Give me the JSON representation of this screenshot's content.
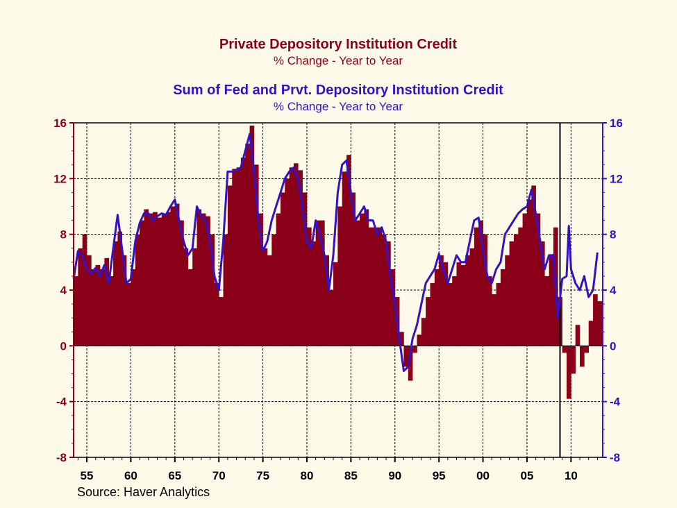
{
  "colors": {
    "series1": "#8b0019",
    "series2": "#3411c4",
    "background": "#fdf9e8"
  },
  "chart_data": {
    "type": "bar+line",
    "titles": [
      {
        "title": "Private Depository Institution Credit",
        "subtitle": "% Change - Year to Year",
        "color": "#8b0019"
      },
      {
        "title": "Sum of Fed and Prvt. Depository Institution Credit",
        "subtitle": "% Change - Year to Year",
        "color": "#3411c4"
      }
    ],
    "source": "Source: Haver Analytics",
    "ylim": [
      -8,
      16
    ],
    "yticks": [
      16,
      12,
      8,
      4,
      0,
      -4,
      -8
    ],
    "ytick_labels": [
      "16",
      "12",
      "8",
      "4",
      "0",
      "-4",
      "-8"
    ],
    "xlim": [
      1953.5,
      2013.6
    ],
    "xticks": [
      1955,
      1960,
      1965,
      1970,
      1975,
      1980,
      1985,
      1990,
      1995,
      2000,
      2005,
      2010
    ],
    "xtick_labels": [
      "55",
      "60",
      "65",
      "70",
      "75",
      "80",
      "85",
      "90",
      "95",
      "00",
      "05",
      "10"
    ],
    "grid": true,
    "vline_x": 2008.75,
    "series": [
      {
        "name": "Private Depository Institution Credit",
        "kind": "bar",
        "axis": "left",
        "color": "#8b0019",
        "points": [
          [
            1953.5,
            5.0
          ],
          [
            1954.0,
            7.0
          ],
          [
            1954.5,
            8.0
          ],
          [
            1955.0,
            6.5
          ],
          [
            1955.5,
            5.5
          ],
          [
            1956.0,
            5.8
          ],
          [
            1956.5,
            5.5
          ],
          [
            1957.0,
            6.3
          ],
          [
            1957.5,
            5.0
          ],
          [
            1958.0,
            7.5
          ],
          [
            1958.5,
            8.2
          ],
          [
            1959.0,
            6.5
          ],
          [
            1959.5,
            4.5
          ],
          [
            1960.0,
            5.5
          ],
          [
            1960.5,
            8.0
          ],
          [
            1961.0,
            9.0
          ],
          [
            1961.5,
            9.8
          ],
          [
            1962.0,
            9.5
          ],
          [
            1962.5,
            9.6
          ],
          [
            1963.0,
            9.2
          ],
          [
            1963.5,
            9.4
          ],
          [
            1964.0,
            9.6
          ],
          [
            1964.5,
            10.0
          ],
          [
            1965.0,
            10.2
          ],
          [
            1965.5,
            9.0
          ],
          [
            1966.0,
            7.0
          ],
          [
            1966.5,
            5.5
          ],
          [
            1967.0,
            7.0
          ],
          [
            1967.5,
            9.8
          ],
          [
            1968.0,
            9.5
          ],
          [
            1968.5,
            9.3
          ],
          [
            1969.0,
            8.0
          ],
          [
            1969.5,
            4.5
          ],
          [
            1970.0,
            3.5
          ],
          [
            1970.5,
            8.0
          ],
          [
            1971.0,
            11.5
          ],
          [
            1971.5,
            12.7
          ],
          [
            1972.0,
            12.8
          ],
          [
            1972.5,
            13.5
          ],
          [
            1973.0,
            14.5
          ],
          [
            1973.5,
            15.8
          ],
          [
            1974.0,
            13.0
          ],
          [
            1974.5,
            9.5
          ],
          [
            1975.0,
            7.0
          ],
          [
            1975.5,
            6.5
          ],
          [
            1976.0,
            8.0
          ],
          [
            1976.5,
            9.5
          ],
          [
            1977.0,
            11.0
          ],
          [
            1977.5,
            12.0
          ],
          [
            1978.0,
            12.8
          ],
          [
            1978.5,
            13.1
          ],
          [
            1979.0,
            12.6
          ],
          [
            1979.5,
            11.0
          ],
          [
            1980.0,
            8.5
          ],
          [
            1980.5,
            7.5
          ],
          [
            1981.0,
            9.0
          ],
          [
            1981.5,
            9.0
          ],
          [
            1982.0,
            6.5
          ],
          [
            1982.5,
            4.0
          ],
          [
            1983.0,
            6.0
          ],
          [
            1983.5,
            10.0
          ],
          [
            1984.0,
            12.5
          ],
          [
            1984.5,
            13.7
          ],
          [
            1985.0,
            11.0
          ],
          [
            1985.5,
            9.0
          ],
          [
            1986.0,
            9.5
          ],
          [
            1986.5,
            9.8
          ],
          [
            1987.0,
            8.5
          ],
          [
            1987.5,
            8.5
          ],
          [
            1988.0,
            8.5
          ],
          [
            1988.5,
            8.0
          ],
          [
            1989.0,
            7.5
          ],
          [
            1989.5,
            5.5
          ],
          [
            1990.0,
            3.5
          ],
          [
            1990.5,
            1.0
          ],
          [
            1991.0,
            -1.5
          ],
          [
            1991.5,
            -2.5
          ],
          [
            1992.0,
            -0.5
          ],
          [
            1992.5,
            0.8
          ],
          [
            1993.0,
            2.0
          ],
          [
            1993.5,
            3.5
          ],
          [
            1994.0,
            4.5
          ],
          [
            1994.5,
            5.5
          ],
          [
            1995.0,
            6.5
          ],
          [
            1995.5,
            6.0
          ],
          [
            1996.0,
            4.5
          ],
          [
            1996.5,
            5.0
          ],
          [
            1997.0,
            6.0
          ],
          [
            1997.5,
            5.8
          ],
          [
            1998.0,
            6.5
          ],
          [
            1998.5,
            7.0
          ],
          [
            1999.0,
            8.5
          ],
          [
            1999.5,
            9.0
          ],
          [
            2000.0,
            8.0
          ],
          [
            2000.5,
            5.0
          ],
          [
            2001.0,
            3.7
          ],
          [
            2001.5,
            4.5
          ],
          [
            2002.0,
            5.5
          ],
          [
            2002.5,
            6.5
          ],
          [
            2003.0,
            7.5
          ],
          [
            2003.5,
            8.0
          ],
          [
            2004.0,
            8.5
          ],
          [
            2004.5,
            9.5
          ],
          [
            2005.0,
            10.5
          ],
          [
            2005.5,
            11.5
          ],
          [
            2006.0,
            9.5
          ],
          [
            2006.5,
            7.5
          ],
          [
            2007.0,
            5.0
          ],
          [
            2007.5,
            6.5
          ],
          [
            2008.0,
            8.5
          ],
          [
            2008.5,
            3.5
          ],
          [
            2009.0,
            -0.5
          ],
          [
            2009.5,
            -3.8
          ],
          [
            2010.0,
            -2.0
          ],
          [
            2010.5,
            1.5
          ],
          [
            2011.0,
            -1.5
          ],
          [
            2011.5,
            -0.5
          ],
          [
            2012.0,
            1.8
          ],
          [
            2012.5,
            3.7
          ],
          [
            2013.0,
            3.2
          ]
        ]
      },
      {
        "name": "Sum of Fed and Prvt. Depository Institution Credit",
        "kind": "line",
        "axis": "right",
        "color": "#3411c4",
        "points": [
          [
            1953.5,
            4.8
          ],
          [
            1954.0,
            6.8
          ],
          [
            1954.5,
            6.5
          ],
          [
            1955.0,
            5.5
          ],
          [
            1955.5,
            5.2
          ],
          [
            1956.0,
            5.6
          ],
          [
            1956.5,
            5.0
          ],
          [
            1957.0,
            5.8
          ],
          [
            1957.5,
            4.5
          ],
          [
            1958.0,
            7.0
          ],
          [
            1958.5,
            9.4
          ],
          [
            1959.0,
            7.0
          ],
          [
            1959.5,
            4.5
          ],
          [
            1960.0,
            4.8
          ],
          [
            1960.5,
            7.5
          ],
          [
            1961.0,
            8.8
          ],
          [
            1961.5,
            9.5
          ],
          [
            1962.0,
            9.5
          ],
          [
            1962.5,
            9.0
          ],
          [
            1963.0,
            9.3
          ],
          [
            1963.5,
            9.5
          ],
          [
            1964.0,
            9.4
          ],
          [
            1964.5,
            10.0
          ],
          [
            1965.0,
            10.5
          ],
          [
            1965.5,
            9.0
          ],
          [
            1966.0,
            7.5
          ],
          [
            1966.5,
            6.5
          ],
          [
            1967.0,
            7.0
          ],
          [
            1967.5,
            10.0
          ],
          [
            1968.0,
            9.3
          ],
          [
            1968.5,
            9.0
          ],
          [
            1969.0,
            7.5
          ],
          [
            1969.5,
            5.0
          ],
          [
            1970.0,
            4.0
          ],
          [
            1970.5,
            7.5
          ],
          [
            1971.0,
            12.5
          ],
          [
            1971.5,
            12.5
          ],
          [
            1972.0,
            12.6
          ],
          [
            1972.5,
            12.8
          ],
          [
            1973.0,
            14.0
          ],
          [
            1973.5,
            15.2
          ],
          [
            1974.0,
            12.5
          ],
          [
            1974.5,
            9.0
          ],
          [
            1975.0,
            6.8
          ],
          [
            1975.5,
            7.5
          ],
          [
            1976.0,
            9.0
          ],
          [
            1976.5,
            10.0
          ],
          [
            1977.0,
            11.0
          ],
          [
            1977.5,
            12.0
          ],
          [
            1978.0,
            12.5
          ],
          [
            1978.5,
            12.8
          ],
          [
            1979.0,
            12.0
          ],
          [
            1979.5,
            10.0
          ],
          [
            1980.0,
            7.5
          ],
          [
            1980.5,
            7.0
          ],
          [
            1981.0,
            9.0
          ],
          [
            1981.5,
            8.0
          ],
          [
            1982.0,
            6.5
          ],
          [
            1982.5,
            4.0
          ],
          [
            1983.0,
            6.5
          ],
          [
            1983.5,
            11.0
          ],
          [
            1984.0,
            13.0
          ],
          [
            1984.5,
            13.3
          ],
          [
            1985.0,
            11.0
          ],
          [
            1985.5,
            9.0
          ],
          [
            1986.0,
            9.5
          ],
          [
            1986.5,
            10.0
          ],
          [
            1987.0,
            9.0
          ],
          [
            1987.5,
            9.0
          ],
          [
            1988.0,
            8.0
          ],
          [
            1988.5,
            8.5
          ],
          [
            1989.0,
            7.5
          ],
          [
            1989.5,
            5.0
          ],
          [
            1990.0,
            3.0
          ],
          [
            1990.5,
            0.5
          ],
          [
            1991.0,
            -1.8
          ],
          [
            1991.5,
            -1.5
          ],
          [
            1992.0,
            0.5
          ],
          [
            1992.5,
            1.5
          ],
          [
            1993.0,
            3.0
          ],
          [
            1993.5,
            4.5
          ],
          [
            1994.0,
            5.0
          ],
          [
            1994.5,
            5.5
          ],
          [
            1995.0,
            6.6
          ],
          [
            1995.5,
            5.5
          ],
          [
            1996.0,
            4.5
          ],
          [
            1996.5,
            5.5
          ],
          [
            1997.0,
            6.5
          ],
          [
            1997.5,
            6.0
          ],
          [
            1998.0,
            6.0
          ],
          [
            1998.5,
            7.5
          ],
          [
            1999.0,
            9.0
          ],
          [
            1999.5,
            9.2
          ],
          [
            2000.0,
            7.0
          ],
          [
            2000.5,
            5.0
          ],
          [
            2001.0,
            4.5
          ],
          [
            2001.5,
            5.5
          ],
          [
            2002.0,
            6.0
          ],
          [
            2002.5,
            8.0
          ],
          [
            2003.0,
            8.5
          ],
          [
            2003.5,
            9.0
          ],
          [
            2004.0,
            9.5
          ],
          [
            2004.5,
            9.8
          ],
          [
            2005.0,
            10.0
          ],
          [
            2005.5,
            11.2
          ],
          [
            2006.0,
            9.5
          ],
          [
            2006.5,
            7.5
          ],
          [
            2007.0,
            5.5
          ],
          [
            2007.5,
            6.5
          ],
          [
            2008.0,
            6.5
          ],
          [
            2008.5,
            2.0
          ],
          [
            2009.0,
            4.8
          ],
          [
            2009.5,
            5.0
          ],
          [
            2009.75,
            8.6
          ],
          [
            2010.0,
            5.5
          ],
          [
            2010.5,
            4.5
          ],
          [
            2011.0,
            4.0
          ],
          [
            2011.5,
            5.0
          ],
          [
            2012.0,
            3.5
          ],
          [
            2012.5,
            4.0
          ],
          [
            2013.0,
            6.7
          ]
        ]
      }
    ]
  }
}
